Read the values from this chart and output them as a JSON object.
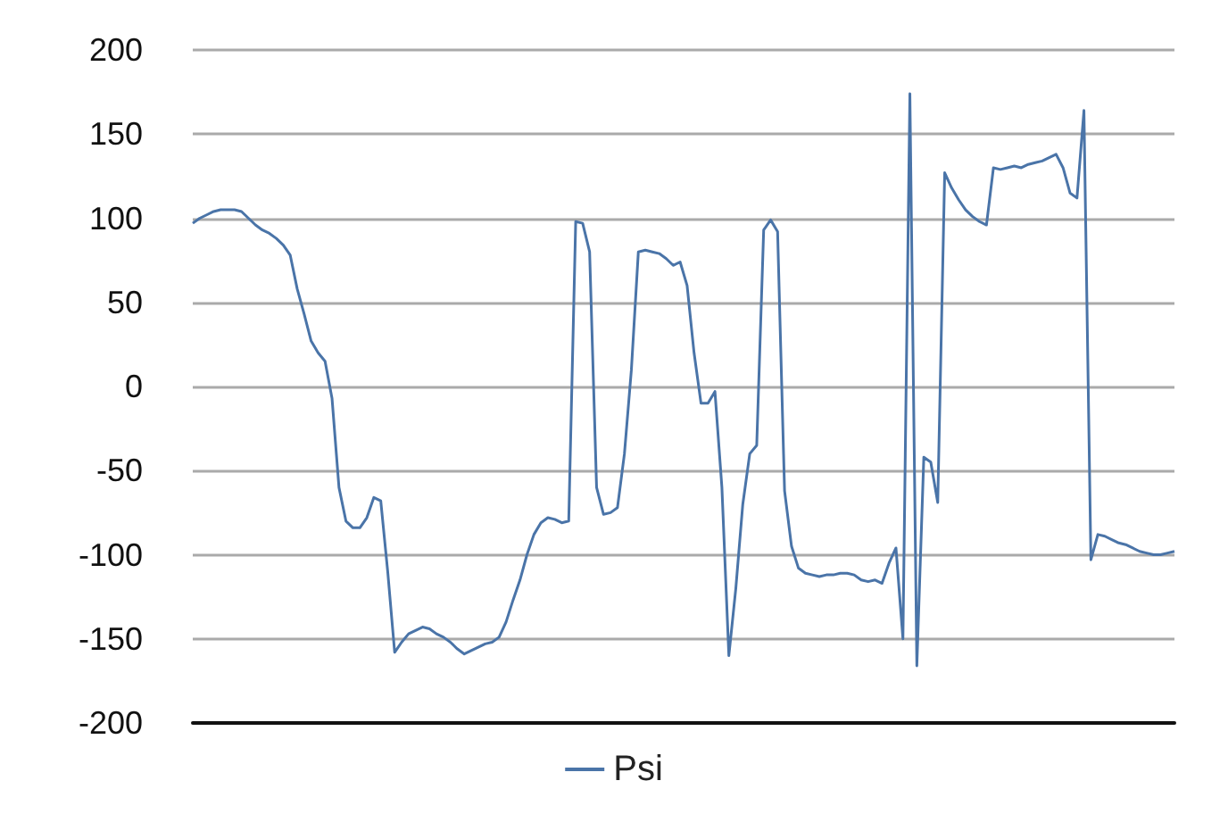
{
  "chart_data": {
    "type": "line",
    "categories": [
      null,
      null,
      null,
      null,
      null,
      null,
      null,
      null,
      null,
      null,
      null,
      null,
      null,
      null,
      null,
      null,
      null,
      null,
      null,
      null,
      null,
      null,
      null,
      null,
      null,
      null,
      null,
      null,
      null,
      null,
      null,
      null,
      null,
      null,
      null,
      null,
      null,
      null,
      null,
      null,
      null,
      null,
      null,
      null,
      null,
      null,
      null,
      null,
      null,
      null,
      null,
      null,
      null,
      null,
      null,
      null,
      null,
      null,
      null,
      null,
      null,
      null,
      null,
      null,
      null,
      null,
      null,
      null,
      null,
      null,
      null,
      null,
      null,
      null,
      null,
      null,
      null,
      null,
      null,
      null,
      null,
      null,
      null,
      null,
      null,
      null,
      null,
      null,
      null,
      null,
      null,
      null,
      null,
      null,
      null,
      null,
      null,
      null,
      null,
      null,
      null,
      null,
      null,
      null,
      null,
      null,
      null,
      null,
      null,
      null,
      null,
      null,
      null,
      null,
      null,
      null,
      null,
      null,
      null,
      null,
      null,
      null,
      null,
      null,
      null,
      null,
      null,
      null,
      null,
      null,
      null,
      null,
      null,
      null,
      null,
      null,
      null,
      null,
      null,
      null,
      null,
      null
    ],
    "series": [
      {
        "name": "Psi",
        "color": "#4a74a8",
        "values": [
          97,
          100,
          102,
          104,
          105,
          105,
          105,
          104,
          100,
          96,
          93,
          91,
          88,
          84,
          78,
          58,
          43,
          27,
          20,
          15,
          -7,
          -60,
          -80,
          -84,
          -84,
          -78,
          -66,
          -68,
          -110,
          -158,
          -152,
          -147,
          -145,
          -143,
          -144,
          -147,
          -149,
          -152,
          -156,
          -159,
          -157,
          -155,
          -153,
          -152,
          -149,
          -140,
          -127,
          -115,
          -100,
          -88,
          -81,
          -78,
          -79,
          -81,
          -80,
          98,
          97,
          80,
          -60,
          -76,
          -75,
          -72,
          -40,
          10,
          80,
          81,
          80,
          79,
          76,
          72,
          74,
          60,
          20,
          -10,
          -10,
          -3,
          -60,
          -160,
          -120,
          -70,
          -40,
          -35,
          93,
          99,
          92,
          -62,
          -95,
          -108,
          -111,
          -112,
          -113,
          -112,
          -112,
          -111,
          -111,
          -112,
          -115,
          -116,
          -115,
          -117,
          -105,
          -96,
          -150,
          174,
          -166,
          -42,
          -45,
          -69,
          127,
          118,
          111,
          105,
          101,
          98,
          96,
          130,
          129,
          130,
          131,
          130,
          132,
          133,
          134,
          136,
          138,
          130,
          115,
          112,
          164,
          -103,
          -88,
          -89,
          -91,
          -93,
          -94,
          -96,
          -98,
          -99,
          -100,
          -100,
          -99,
          -98
        ]
      }
    ],
    "ylim": [
      -200,
      200
    ],
    "yticks": [
      -200,
      -150,
      -100,
      -50,
      0,
      50,
      100,
      150,
      200
    ],
    "grid": "y",
    "legend": "bottom",
    "tick_labels": "y",
    "line_style": "solid"
  }
}
